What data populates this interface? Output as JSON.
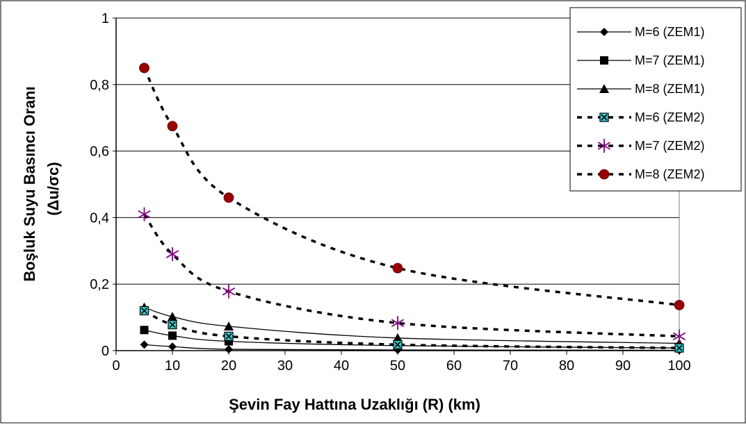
{
  "chart_data": {
    "type": "line",
    "xlabel": "Şevin Fay Hattına Uzaklığı (R)  (km)",
    "ylabel": "Boşluk Suyu Basıncı Oranı",
    "ylabel_unit": "(Δu/σc)",
    "xlim": [
      0,
      100
    ],
    "ylim": [
      0,
      1
    ],
    "x_ticks": [
      "0",
      "10",
      "20",
      "30",
      "40",
      "50",
      "60",
      "70",
      "80",
      "90",
      "100"
    ],
    "y_ticks": [
      "0",
      "0,2",
      "0,4",
      "0,6",
      "0,8",
      "1"
    ],
    "grid": "horizontal",
    "legend_position": "top-right",
    "series": [
      {
        "name": "M=6 (ZEM1)",
        "marker": "diamond",
        "line": "solid",
        "marker_color": "#000000",
        "x": [
          5,
          10,
          20,
          50,
          100
        ],
        "y": [
          0.018,
          0.012,
          0.004,
          0.002,
          0.001
        ]
      },
      {
        "name": "M=7 (ZEM1)",
        "marker": "square",
        "line": "solid",
        "marker_color": "#000000",
        "x": [
          5,
          10,
          20,
          50,
          100
        ],
        "y": [
          0.062,
          0.045,
          0.028,
          0.015,
          0.008
        ]
      },
      {
        "name": "M=8 (ZEM1)",
        "marker": "triangle",
        "line": "solid",
        "marker_color": "#000000",
        "x": [
          5,
          10,
          20,
          50,
          100
        ],
        "y": [
          0.13,
          0.102,
          0.073,
          0.038,
          0.022
        ]
      },
      {
        "name": "M=6 (ZEM2)",
        "marker": "x-square",
        "line": "dashed",
        "marker_color": "#33cccc",
        "x": [
          5,
          10,
          20,
          50,
          100
        ],
        "y": [
          0.12,
          0.078,
          0.043,
          0.018,
          0.008
        ]
      },
      {
        "name": "M=7 (ZEM2)",
        "marker": "asterisk",
        "line": "dashed",
        "marker_color": "#800080",
        "x": [
          5,
          10,
          20,
          50,
          100
        ],
        "y": [
          0.41,
          0.29,
          0.178,
          0.083,
          0.043
        ]
      },
      {
        "name": "M=8 (ZEM2)",
        "marker": "circle",
        "line": "dashed",
        "marker_color": "#990000",
        "x": [
          5,
          10,
          20,
          50,
          100
        ],
        "y": [
          0.85,
          0.675,
          0.46,
          0.248,
          0.137
        ]
      }
    ]
  }
}
